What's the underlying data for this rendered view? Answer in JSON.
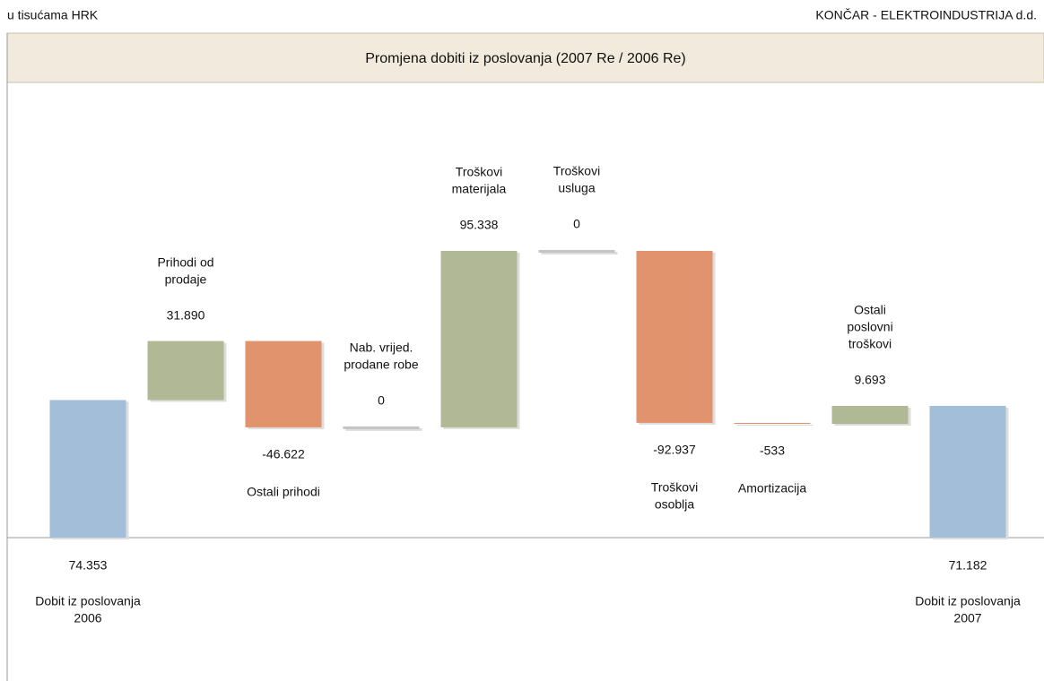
{
  "header": {
    "unit": "u tisućama HRK",
    "company": "KONČAR - ELEKTROINDUSTRIJA d.d."
  },
  "chart_data": {
    "type": "waterfall",
    "title": "Promjena dobiti iz poslovanja (2007 Re / 2006 Re)",
    "categories": [
      [
        "Dobit iz poslovanja",
        "2006"
      ],
      [
        "Prihodi od",
        "prodaje"
      ],
      [
        "Ostali prihodi"
      ],
      [
        "Nab. vrijed.",
        "prodane robe"
      ],
      [
        "Troškovi",
        "materijala"
      ],
      [
        "Troškovi",
        "usluga"
      ],
      [
        "Troškovi",
        "osoblja"
      ],
      [
        "Amortizacija"
      ],
      [
        "Ostali",
        "poslovni",
        "troškovi"
      ],
      [
        "Dobit iz poslovanja",
        "2007"
      ]
    ],
    "values": [
      74353,
      31890,
      -46622,
      0,
      95338,
      0,
      -92937,
      -533,
      9693,
      71182
    ],
    "value_labels": [
      "74.353",
      "31.890",
      "-46.622",
      "0",
      "95.338",
      "0",
      "-92.937",
      "-533",
      "9.693",
      "71.182"
    ],
    "measure": [
      "absolute",
      "relative",
      "relative",
      "relative",
      "relative",
      "relative",
      "relative",
      "relative",
      "relative",
      "absolute"
    ],
    "colors": {
      "absolute": "#a3bed9",
      "increase": "#b1b895",
      "decrease": "#e0936c",
      "zero": "#c4c4c4"
    }
  }
}
